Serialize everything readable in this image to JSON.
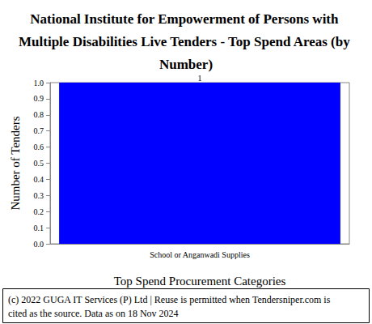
{
  "chart_data": {
    "type": "bar",
    "title": "National Institute for Empowerment of Persons with Multiple Disabilities Live Tenders - Top Spend Areas (by Number)",
    "x_label": "Top Spend Procurement Categories",
    "y_label": "Number of Tenders",
    "categories": [
      "School or Anganwadi Supplies"
    ],
    "values": [
      1
    ],
    "color": "#0000ff",
    "ylim": [
      0,
      1
    ],
    "yticks": [
      {
        "value": 0,
        "label": "0.0"
      },
      0.1,
      0.2,
      0.3,
      0.4,
      0.5,
      0.6,
      0.7,
      0.8,
      0.9,
      {
        "value": 1,
        "label": "1.0"
      }
    ],
    "grid": false,
    "data_labels": true,
    "footer": "(c) 2022 GUGA IT Services (P) Ltd | Reuse is permitted when Tendersniper.com is cited as the source. Data as on 18 Nov 2024"
  }
}
